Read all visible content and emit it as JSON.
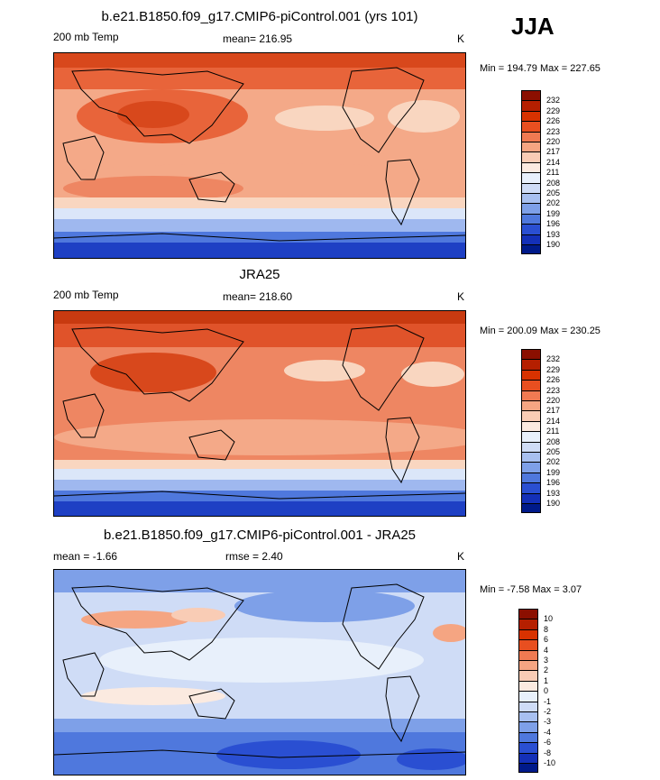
{
  "season": "JJA",
  "panels": [
    {
      "title": "b.e21.B1850.f09_g17.CMIP6-piControl.001 (yrs 101)",
      "left_label": "200 mb Temp",
      "center_label": "mean= 216.95",
      "units": "K",
      "minmax": "Min = 194.79 Max = 227.65"
    },
    {
      "title": "JRA25",
      "left_label": "200 mb Temp",
      "center_label": "mean= 218.60",
      "units": "K",
      "minmax": "Min = 200.09 Max = 230.25"
    },
    {
      "title": "b.e21.B1850.f09_g17.CMIP6-piControl.001 - JRA25",
      "left_label": "mean =  -1.66",
      "center_label": "rmse =   2.40",
      "units": "K",
      "minmax": "Min =  -7.58 Max =   3.07"
    }
  ],
  "colorbars": {
    "temperature": {
      "labels": [
        "232",
        "229",
        "226",
        "223",
        "220",
        "217",
        "214",
        "211",
        "208",
        "205",
        "202",
        "199",
        "196",
        "193",
        "190"
      ],
      "colors": [
        "#8b0f00",
        "#b51f00",
        "#d83200",
        "#e84f20",
        "#f07a52",
        "#f5a582",
        "#f9ccb5",
        "#fbeae0",
        "#e8f0fb",
        "#cfdcf6",
        "#a8c0f0",
        "#7ea0e8",
        "#4f78dd",
        "#2a4fd2",
        "#1430b8",
        "#001a8a"
      ]
    },
    "difference": {
      "labels": [
        "10",
        "8",
        "6",
        "4",
        "3",
        "2",
        "1",
        "0",
        "-1",
        "-2",
        "-3",
        "-4",
        "-6",
        "-8",
        "-10"
      ],
      "colors": [
        "#8b0f00",
        "#b51f00",
        "#d83200",
        "#e84f20",
        "#f07a52",
        "#f5a582",
        "#f9ccb5",
        "#fbeae0",
        "#e8f0fb",
        "#cfdcf6",
        "#a8c0f0",
        "#7ea0e8",
        "#4f78dd",
        "#2a4fd2",
        "#1430b8",
        "#001a8a"
      ]
    }
  }
}
